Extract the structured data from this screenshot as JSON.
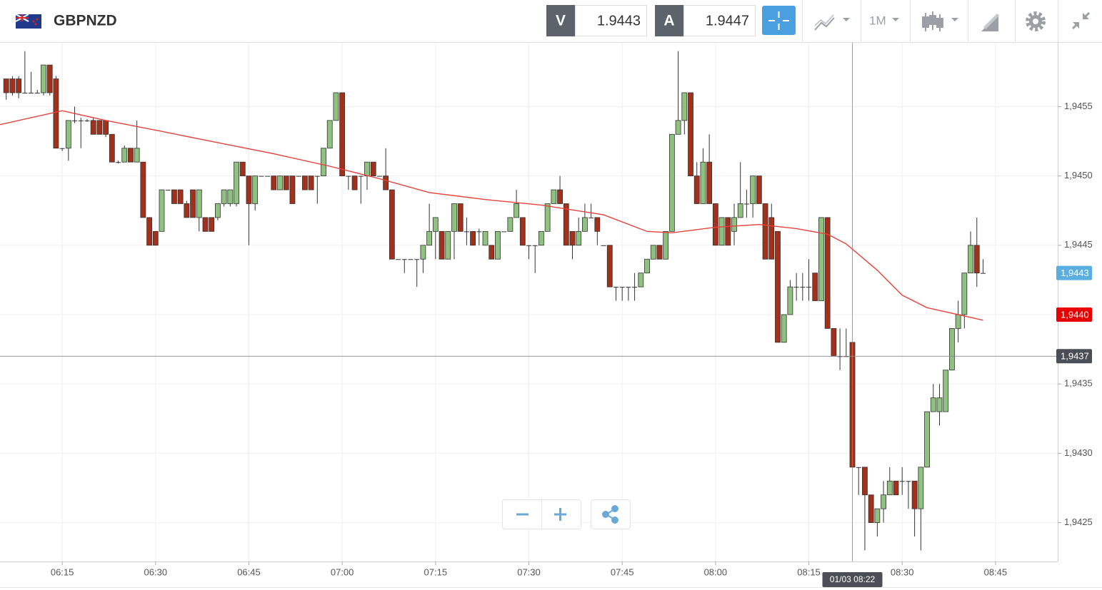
{
  "header": {
    "symbol": "GBPNZD",
    "sell_label": "V",
    "sell_price": "1.9443",
    "buy_label": "A",
    "buy_price": "1.9447",
    "timeframe": "1M"
  },
  "chart_data": {
    "type": "candlestick",
    "xlim": [
      "06:05",
      "08:55"
    ],
    "xticks": [
      "06:15",
      "06:30",
      "06:45",
      "07:00",
      "07:15",
      "07:30",
      "07:45",
      "08:00",
      "08:15",
      "08:30",
      "08:45"
    ],
    "ylim": [
      1.94222,
      1.94596
    ],
    "yticks": [
      {
        "value": 1.9425,
        "label": "1,9425"
      },
      {
        "value": 1.943,
        "label": "1,9430"
      },
      {
        "value": 1.9435,
        "label": "1,9435"
      },
      {
        "value": 1.944,
        "label": "1,9440"
      },
      {
        "value": 1.9445,
        "label": "1,9445"
      },
      {
        "value": 1.945,
        "label": "1,9450"
      },
      {
        "value": 1.9455,
        "label": "1,9455"
      }
    ],
    "grid": true,
    "up_color": "#8fc17f",
    "down_color": "#a3301b",
    "x": [
      "06:06",
      "06:07",
      "06:08",
      "06:09",
      "06:10",
      "06:11",
      "06:12",
      "06:13",
      "06:14",
      "06:15",
      "06:16",
      "06:17",
      "06:18",
      "06:19",
      "06:20",
      "06:21",
      "06:22",
      "06:23",
      "06:24",
      "06:25",
      "06:26",
      "06:27",
      "06:28",
      "06:29",
      "06:30",
      "06:31",
      "06:32",
      "06:33",
      "06:34",
      "06:35",
      "06:36",
      "06:37",
      "06:38",
      "06:39",
      "06:40",
      "06:41",
      "06:42",
      "06:43",
      "06:44",
      "06:45",
      "06:46",
      "06:47",
      "06:48",
      "06:49",
      "06:50",
      "06:51",
      "06:52",
      "06:53",
      "06:54",
      "06:55",
      "06:56",
      "06:57",
      "06:58",
      "06:59",
      "07:00",
      "07:01",
      "07:02",
      "07:03",
      "07:04",
      "07:05",
      "07:06",
      "07:07",
      "07:08",
      "07:09",
      "07:10",
      "07:11",
      "07:12",
      "07:13",
      "07:14",
      "07:15",
      "07:16",
      "07:17",
      "07:18",
      "07:19",
      "07:20",
      "07:21",
      "07:22",
      "07:23",
      "07:24",
      "07:25",
      "07:26",
      "07:27",
      "07:28",
      "07:29",
      "07:30",
      "07:31",
      "07:32",
      "07:33",
      "07:34",
      "07:35",
      "07:36",
      "07:37",
      "07:38",
      "07:39",
      "07:40",
      "07:41",
      "07:42",
      "07:43",
      "07:44",
      "07:45",
      "07:46",
      "07:47",
      "07:48",
      "07:49",
      "07:50",
      "07:51",
      "07:52",
      "07:53",
      "07:54",
      "07:55",
      "07:56",
      "07:57",
      "07:58",
      "07:59",
      "08:00",
      "08:01",
      "08:02",
      "08:03",
      "08:04",
      "08:05",
      "08:06",
      "08:07",
      "08:08",
      "08:09",
      "08:10",
      "08:11",
      "08:12",
      "08:13",
      "08:14",
      "08:15",
      "08:16",
      "08:17",
      "08:18",
      "08:19",
      "08:20",
      "08:21",
      "08:22",
      "08:23",
      "08:24",
      "08:25",
      "08:26",
      "08:27",
      "08:28",
      "08:29",
      "08:30",
      "08:31",
      "08:32",
      "08:33",
      "08:34",
      "08:35",
      "08:36",
      "08:37",
      "08:38",
      "08:39",
      "08:40",
      "08:41",
      "08:42",
      "08:43"
    ],
    "open": [
      1.9457,
      1.9457,
      1.9457,
      1.9456,
      1.9456,
      1.9456,
      1.9456,
      1.9458,
      1.9457,
      1.9452,
      1.9452,
      1.9454,
      1.9454,
      1.9454,
      1.9454,
      1.9454,
      1.9454,
      1.9453,
      1.9451,
      1.9451,
      1.9452,
      1.9451,
      1.9451,
      1.9447,
      1.9446,
      1.9446,
      1.9449,
      1.9449,
      1.9449,
      1.9448,
      1.9449,
      1.9447,
      1.9447,
      1.9447,
      1.9447,
      1.9448,
      1.9448,
      1.9448,
      1.9451,
      1.945,
      1.9448,
      1.945,
      1.945,
      1.945,
      1.9449,
      1.945,
      1.945,
      1.945,
      1.945,
      1.945,
      1.945,
      1.945,
      1.9452,
      1.9454,
      1.9456,
      1.945,
      1.945,
      1.945,
      1.945,
      1.9451,
      1.945,
      1.945,
      1.9449,
      1.9444,
      1.9444,
      1.9444,
      1.9444,
      1.9444,
      1.9445,
      1.9446,
      1.9446,
      1.9444,
      1.9446,
      1.9448,
      1.9446,
      1.9446,
      1.9446,
      1.9445,
      1.9445,
      1.9444,
      1.9446,
      1.9446,
      1.9447,
      1.9447,
      1.9445,
      1.9445,
      1.9445,
      1.9446,
      1.9448,
      1.9449,
      1.9448,
      1.9446,
      1.9445,
      1.9446,
      1.9447,
      1.9447,
      1.9445,
      1.9445,
      1.9442,
      1.9442,
      1.9442,
      1.9442,
      1.9442,
      1.9443,
      1.9444,
      1.9445,
      1.9444,
      1.9446,
      1.9453,
      1.9454,
      1.9456,
      1.945,
      1.9448,
      1.9451,
      1.9448,
      1.9445,
      1.9447,
      1.9446,
      1.9447,
      1.9448,
      1.9448,
      1.945,
      1.9448,
      1.9447,
      1.9446,
      1.9438,
      1.944,
      1.9442,
      1.9442,
      1.9442,
      1.9443,
      1.9441,
      1.9447,
      1.9439,
      1.9437,
      1.9437,
      1.9438,
      1.9429,
      1.9429,
      1.9427,
      1.9425,
      1.9426,
      1.9427,
      1.9428,
      1.9428,
      1.9428,
      1.9428,
      1.9426,
      1.9429,
      1.9433,
      1.9433,
      1.9433,
      1.9436,
      1.9439,
      1.944,
      1.9443,
      1.9445,
      1.9443
    ],
    "high": [
      1.9457,
      1.94572,
      1.94572,
      1.9459,
      1.94575,
      1.94562,
      1.9458,
      1.9458,
      1.94572,
      1.9452,
      1.9454,
      1.9455,
      1.94542,
      1.94541,
      1.94542,
      1.9454,
      1.9454,
      1.9453,
      1.94511,
      1.94522,
      1.9452,
      1.9454,
      1.9451,
      1.9447,
      1.9446,
      1.9449,
      1.9449,
      1.9449,
      1.9449,
      1.94482,
      1.9449,
      1.9449,
      1.9447,
      1.9447,
      1.9448,
      1.9449,
      1.9449,
      1.9451,
      1.9451,
      1.945,
      1.945,
      1.945,
      1.945,
      1.945,
      1.945,
      1.945,
      1.945,
      1.945,
      1.945,
      1.945,
      1.945,
      1.9452,
      1.9454,
      1.9456,
      1.9456,
      1.945,
      1.945,
      1.945,
      1.9451,
      1.9451,
      1.945,
      1.9452,
      1.9449,
      1.9444,
      1.9444,
      1.9444,
      1.9444,
      1.9445,
      1.9448,
      1.9447,
      1.9446,
      1.9446,
      1.9448,
      1.9448,
      1.9447,
      1.9446,
      1.94462,
      1.9446,
      1.9445,
      1.9446,
      1.9446,
      1.9447,
      1.9449,
      1.9447,
      1.9445,
      1.9445,
      1.9446,
      1.9448,
      1.9449,
      1.945,
      1.9448,
      1.9446,
      1.9447,
      1.9448,
      1.9448,
      1.9447,
      1.9445,
      1.9445,
      1.9442,
      1.9442,
      1.9442,
      1.9443,
      1.9443,
      1.9444,
      1.9445,
      1.9445,
      1.9446,
      1.9453,
      1.9459,
      1.9456,
      1.9456,
      1.9451,
      1.9452,
      1.9453,
      1.9448,
      1.9447,
      1.9447,
      1.9448,
      1.9451,
      1.9449,
      1.945,
      1.945,
      1.9448,
      1.9448,
      1.9446,
      1.944,
      1.94425,
      1.9443,
      1.9443,
      1.9444,
      1.9443,
      1.9447,
      1.9447,
      1.9439,
      1.9439,
      1.9439,
      1.9438,
      1.9429,
      1.9429,
      1.9427,
      1.9426,
      1.9428,
      1.9429,
      1.9428,
      1.9429,
      1.9428,
      1.9428,
      1.9429,
      1.9433,
      1.9435,
      1.9435,
      1.9436,
      1.9439,
      1.9441,
      1.9443,
      1.9446,
      1.9447,
      1.9444
    ],
    "low": [
      1.94555,
      1.94558,
      1.94556,
      1.9456,
      1.9456,
      1.9456,
      1.94558,
      1.94558,
      1.9452,
      1.94518,
      1.94511,
      1.94538,
      1.9452,
      1.94539,
      1.9453,
      1.9453,
      1.94528,
      1.9451,
      1.94509,
      1.9451,
      1.9451,
      1.9451,
      1.9447,
      1.9445,
      1.9445,
      1.9446,
      1.9449,
      1.9448,
      1.9448,
      1.9447,
      1.9447,
      1.9446,
      1.9446,
      1.9446,
      1.94468,
      1.94478,
      1.94478,
      1.94478,
      1.945,
      1.9445,
      1.94475,
      1.945,
      1.945,
      1.9449,
      1.9449,
      1.9449,
      1.9448,
      1.945,
      1.9449,
      1.9449,
      1.9448,
      1.945,
      1.9452,
      1.9454,
      1.945,
      1.9449,
      1.9449,
      1.9448,
      1.9449,
      1.945,
      1.945,
      1.9449,
      1.9444,
      1.9444,
      1.9443,
      1.9444,
      1.9442,
      1.9443,
      1.9445,
      1.9444,
      1.9444,
      1.9444,
      1.9444,
      1.9446,
      1.9445,
      1.9445,
      1.9445,
      1.9445,
      1.9444,
      1.9444,
      1.9446,
      1.9446,
      1.9447,
      1.9445,
      1.9444,
      1.9443,
      1.9445,
      1.9446,
      1.9448,
      1.9448,
      1.9445,
      1.9444,
      1.9445,
      1.9446,
      1.9447,
      1.9445,
      1.9445,
      1.9442,
      1.9441,
      1.9441,
      1.9441,
      1.9441,
      1.9442,
      1.9443,
      1.9444,
      1.9444,
      1.9444,
      1.9446,
      1.9453,
      1.9453,
      1.945,
      1.9448,
      1.9448,
      1.9448,
      1.9445,
      1.9445,
      1.9445,
      1.9445,
      1.9447,
      1.9447,
      1.9447,
      1.9448,
      1.9444,
      1.9444,
      1.9438,
      1.9438,
      1.944,
      1.9441,
      1.9441,
      1.9441,
      1.9441,
      1.9441,
      1.9439,
      1.9437,
      1.9436,
      1.9437,
      1.9429,
      1.9427,
      1.9423,
      1.9425,
      1.9424,
      1.9425,
      1.9427,
      1.9427,
      1.9427,
      1.9426,
      1.9424,
      1.9423,
      1.9429,
      1.9433,
      1.9432,
      1.9433,
      1.9436,
      1.9438,
      1.9439,
      1.9443,
      1.9442,
      1.9443
    ],
    "close": [
      1.9456,
      1.9456,
      1.9456,
      1.9456,
      1.9456,
      1.9456,
      1.9458,
      1.9456,
      1.9452,
      1.9452,
      1.9454,
      1.9454,
      1.9454,
      1.9454,
      1.9453,
      1.9453,
      1.9453,
      1.9451,
      1.9451,
      1.9452,
      1.9451,
      1.9452,
      1.9447,
      1.9445,
      1.9445,
      1.9449,
      1.9449,
      1.9448,
      1.9448,
      1.9447,
      1.9447,
      1.9449,
      1.9446,
      1.9446,
      1.9448,
      1.9449,
      1.9449,
      1.9451,
      1.945,
      1.9448,
      1.945,
      1.945,
      1.945,
      1.9449,
      1.945,
      1.9449,
      1.9448,
      1.945,
      1.9449,
      1.9449,
      1.945,
      1.9452,
      1.9454,
      1.9456,
      1.945,
      1.945,
      1.9449,
      1.945,
      1.9451,
      1.945,
      1.945,
      1.9449,
      1.9444,
      1.9444,
      1.9444,
      1.9444,
      1.9444,
      1.9445,
      1.9446,
      1.9447,
      1.9444,
      1.9446,
      1.9448,
      1.9446,
      1.9446,
      1.9445,
      1.9446,
      1.9446,
      1.9444,
      1.9446,
      1.9446,
      1.9447,
      1.9448,
      1.9445,
      1.9445,
      1.9445,
      1.9446,
      1.9448,
      1.9449,
      1.9448,
      1.9445,
      1.9445,
      1.9446,
      1.9447,
      1.9447,
      1.9446,
      1.9445,
      1.9442,
      1.9442,
      1.9442,
      1.9442,
      1.9442,
      1.9443,
      1.9444,
      1.9445,
      1.9444,
      1.9446,
      1.9453,
      1.9454,
      1.9456,
      1.945,
      1.9448,
      1.9451,
      1.9448,
      1.9445,
      1.9447,
      1.9445,
      1.9447,
      1.9448,
      1.9448,
      1.945,
      1.9448,
      1.9444,
      1.9444,
      1.9438,
      1.944,
      1.9442,
      1.9442,
      1.9442,
      1.9442,
      1.9441,
      1.9447,
      1.9439,
      1.9437,
      1.9437,
      1.9437,
      1.9429,
      1.9429,
      1.9427,
      1.9425,
      1.9426,
      1.9427,
      1.9428,
      1.9427,
      1.9428,
      1.9428,
      1.9426,
      1.9429,
      1.9433,
      1.9434,
      1.9434,
      1.9436,
      1.9439,
      1.944,
      1.9443,
      1.9445,
      1.9443,
      1.9443
    ],
    "moving_average": {
      "color": "#e8423b",
      "x": [
        "06:05",
        "06:15",
        "06:22",
        "06:30",
        "06:40",
        "06:49",
        "06:58",
        "07:06",
        "07:14",
        "07:23",
        "07:32",
        "07:42",
        "07:49",
        "07:53",
        "08:00",
        "08:07",
        "08:13",
        "08:18",
        "08:21",
        "08:26",
        "08:30",
        "08:34",
        "08:38",
        "08:43"
      ],
      "values": [
        1.94537,
        1.94547,
        1.9454,
        1.94533,
        1.94524,
        1.94516,
        1.94507,
        1.94498,
        1.94488,
        1.94483,
        1.94479,
        1.94472,
        1.9446,
        1.94459,
        1.94463,
        1.94465,
        1.94462,
        1.94458,
        1.94451,
        1.94432,
        1.94414,
        1.94405,
        1.94401,
        1.94396
      ]
    },
    "price_tags": [
      {
        "value": 1.9443,
        "label": "1,9443",
        "color": "#5aaee0"
      },
      {
        "value": 1.944,
        "label": "1,9440",
        "color": "#e60000"
      }
    ],
    "crosshair": {
      "x": "08:22",
      "x_label": "01/03 08:22",
      "price": 1.9437,
      "price_label": "1,9437",
      "color": "#4a4f57"
    }
  }
}
